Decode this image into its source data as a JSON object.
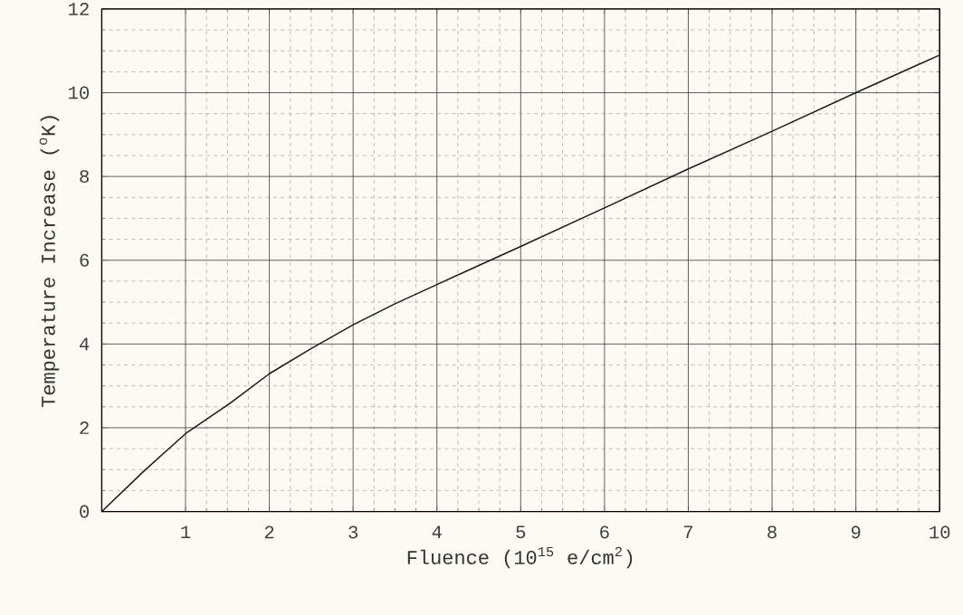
{
  "chart_data": {
    "type": "line",
    "xlabel": "Fluence (10$^{15}$ e/cm$^{2}$)",
    "ylabel": "Temperature Increase  ($^{o}$K)",
    "x": [
      0,
      0.5,
      1,
      1.5,
      2,
      2.5,
      3,
      3.5,
      4,
      5,
      6,
      7,
      8,
      9,
      10
    ],
    "series": [
      {
        "color": "#1a1a1a",
        "values": [
          0,
          0.96,
          1.86,
          2.54,
          3.29,
          3.89,
          4.46,
          4.96,
          5.42,
          6.33,
          7.25,
          8.18,
          9.08,
          10.0,
          10.9
        ]
      }
    ],
    "xlim": [
      0,
      10
    ],
    "ylim": [
      0,
      12
    ],
    "xticks": [
      1,
      2,
      3,
      4,
      5,
      6,
      7,
      8,
      9,
      10
    ],
    "yticks": [
      0,
      2,
      4,
      6,
      8,
      10,
      12
    ],
    "grid": true,
    "marker": "none",
    "line_style": "solid"
  }
}
